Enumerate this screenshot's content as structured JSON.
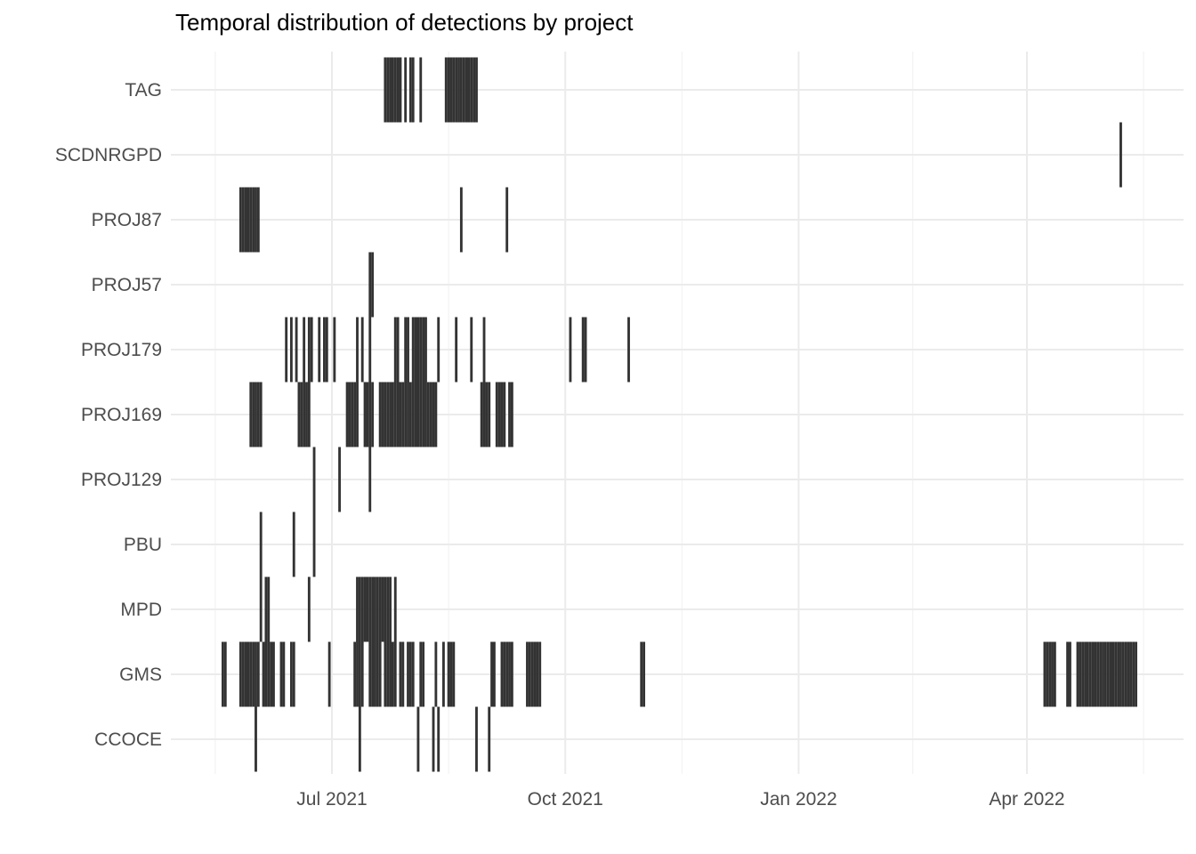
{
  "chart_data": {
    "type": "timeline",
    "title": "Temporal distribution of detections by project",
    "xlabel": "",
    "ylabel": "",
    "x_range": [
      "2021-05-01",
      "2022-05-31"
    ],
    "x_ticks": [
      {
        "date": "2021-07-01",
        "label": "Jul 2021"
      },
      {
        "date": "2021-10-01",
        "label": "Oct 2021"
      },
      {
        "date": "2022-01-01",
        "label": "Jan 2022"
      },
      {
        "date": "2022-04-01",
        "label": "Apr 2022"
      }
    ],
    "grid": true,
    "bar_color": "#333333",
    "projects": [
      "TAG",
      "SCDNRGPD",
      "PROJ87",
      "PROJ57",
      "PROJ179",
      "PROJ169",
      "PROJ129",
      "PBU",
      "MPD",
      "GMS",
      "CCOCE"
    ],
    "detections": [
      {
        "project": "TAG",
        "dates": [
          "2021-07-22",
          "2021-07-23",
          "2021-07-24",
          "2021-07-25",
          "2021-07-26",
          "2021-07-27",
          "2021-07-28",
          "2021-07-30",
          "2021-08-01",
          "2021-08-02",
          "2021-08-05",
          "2021-08-15",
          "2021-08-16",
          "2021-08-17",
          "2021-08-18",
          "2021-08-19",
          "2021-08-20",
          "2021-08-21",
          "2021-08-22",
          "2021-08-23",
          "2021-08-24",
          "2021-08-25",
          "2021-08-26",
          "2021-08-27"
        ]
      },
      {
        "project": "SCDNRGPD",
        "dates": [
          "2022-05-08"
        ]
      },
      {
        "project": "PROJ87",
        "dates": [
          "2021-05-26",
          "2021-05-27",
          "2021-05-28",
          "2021-05-29",
          "2021-05-30",
          "2021-05-31",
          "2021-06-01",
          "2021-06-02",
          "2021-08-21",
          "2021-09-08"
        ]
      },
      {
        "project": "PROJ57",
        "dates": [
          "2021-07-16",
          "2021-07-17"
        ]
      },
      {
        "project": "PROJ179",
        "dates": [
          "2021-06-13",
          "2021-06-15",
          "2021-06-17",
          "2021-06-20",
          "2021-06-22",
          "2021-06-23",
          "2021-06-26",
          "2021-06-28",
          "2021-06-29",
          "2021-07-02",
          "2021-07-11",
          "2021-07-13",
          "2021-07-16",
          "2021-07-26",
          "2021-07-27",
          "2021-07-30",
          "2021-07-31",
          "2021-08-02",
          "2021-08-03",
          "2021-08-04",
          "2021-08-05",
          "2021-08-06",
          "2021-08-07",
          "2021-08-12",
          "2021-08-19",
          "2021-08-25",
          "2021-08-30",
          "2021-10-03",
          "2021-10-08",
          "2021-10-09",
          "2021-10-26"
        ]
      },
      {
        "project": "PROJ169",
        "dates": [
          "2021-05-30",
          "2021-05-31",
          "2021-06-01",
          "2021-06-02",
          "2021-06-03",
          "2021-06-18",
          "2021-06-19",
          "2021-06-20",
          "2021-06-21",
          "2021-06-22",
          "2021-07-07",
          "2021-07-08",
          "2021-07-09",
          "2021-07-10",
          "2021-07-11",
          "2021-07-14",
          "2021-07-15",
          "2021-07-16",
          "2021-07-17",
          "2021-07-20",
          "2021-07-21",
          "2021-07-22",
          "2021-07-23",
          "2021-07-24",
          "2021-07-25",
          "2021-07-26",
          "2021-07-27",
          "2021-07-28",
          "2021-07-29",
          "2021-07-30",
          "2021-07-31",
          "2021-08-01",
          "2021-08-02",
          "2021-08-03",
          "2021-08-04",
          "2021-08-05",
          "2021-08-06",
          "2021-08-07",
          "2021-08-08",
          "2021-08-09",
          "2021-08-10",
          "2021-08-11",
          "2021-08-29",
          "2021-08-30",
          "2021-08-31",
          "2021-09-01",
          "2021-09-04",
          "2021-09-05",
          "2021-09-06",
          "2021-09-07",
          "2021-09-09",
          "2021-09-10"
        ]
      },
      {
        "project": "PROJ129",
        "dates": [
          "2021-06-24",
          "2021-07-04",
          "2021-07-16"
        ]
      },
      {
        "project": "PBU",
        "dates": [
          "2021-06-03",
          "2021-06-16",
          "2021-06-24"
        ]
      },
      {
        "project": "MPD",
        "dates": [
          "2021-06-03",
          "2021-06-05",
          "2021-06-06",
          "2021-06-22",
          "2021-07-11",
          "2021-07-12",
          "2021-07-13",
          "2021-07-14",
          "2021-07-15",
          "2021-07-16",
          "2021-07-17",
          "2021-07-18",
          "2021-07-19",
          "2021-07-20",
          "2021-07-21",
          "2021-07-22",
          "2021-07-23",
          "2021-07-24",
          "2021-07-26"
        ]
      },
      {
        "project": "GMS",
        "dates": [
          "2021-05-19",
          "2021-05-20",
          "2021-05-26",
          "2021-05-27",
          "2021-05-28",
          "2021-05-29",
          "2021-05-30",
          "2021-05-31",
          "2021-06-01",
          "2021-06-02",
          "2021-06-04",
          "2021-06-05",
          "2021-06-06",
          "2021-06-07",
          "2021-06-08",
          "2021-06-11",
          "2021-06-12",
          "2021-06-15",
          "2021-06-16",
          "2021-06-30",
          "2021-07-10",
          "2021-07-11",
          "2021-07-12",
          "2021-07-13",
          "2021-07-16",
          "2021-07-17",
          "2021-07-18",
          "2021-07-19",
          "2021-07-20",
          "2021-07-22",
          "2021-07-23",
          "2021-07-24",
          "2021-07-25",
          "2021-07-26",
          "2021-07-28",
          "2021-07-29",
          "2021-07-31",
          "2021-08-01",
          "2021-08-02",
          "2021-08-05",
          "2021-08-06",
          "2021-08-11",
          "2021-08-14",
          "2021-08-16",
          "2021-08-17",
          "2021-08-18",
          "2021-09-02",
          "2021-09-03",
          "2021-09-06",
          "2021-09-07",
          "2021-09-08",
          "2021-09-09",
          "2021-09-10",
          "2021-09-16",
          "2021-09-17",
          "2021-09-18",
          "2021-09-19",
          "2021-09-20",
          "2021-09-21",
          "2021-10-31",
          "2021-11-01",
          "2022-04-08",
          "2022-04-09",
          "2022-04-10",
          "2022-04-11",
          "2022-04-12",
          "2022-04-17",
          "2022-04-18",
          "2022-04-21",
          "2022-04-22",
          "2022-04-23",
          "2022-04-24",
          "2022-04-25",
          "2022-04-26",
          "2022-04-27",
          "2022-04-28",
          "2022-04-29",
          "2022-04-30",
          "2022-05-01",
          "2022-05-02",
          "2022-05-03",
          "2022-05-04",
          "2022-05-05",
          "2022-05-06",
          "2022-05-07",
          "2022-05-08",
          "2022-05-09",
          "2022-05-10",
          "2022-05-11",
          "2022-05-12",
          "2022-05-13",
          "2022-05-14"
        ]
      },
      {
        "project": "CCOCE",
        "dates": [
          "2021-06-01",
          "2021-07-12",
          "2021-08-04",
          "2021-08-10",
          "2021-08-12",
          "2021-08-27",
          "2021-09-01"
        ]
      }
    ]
  }
}
